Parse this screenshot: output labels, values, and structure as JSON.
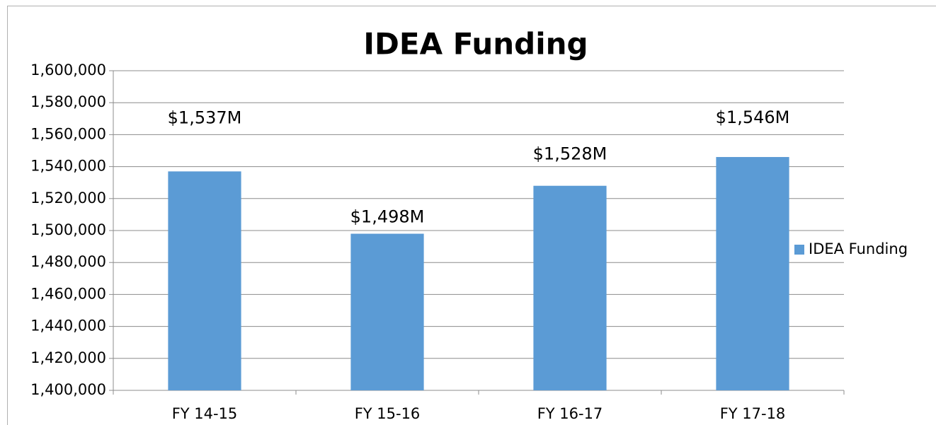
{
  "chart_data": {
    "type": "bar",
    "title": "IDEA Funding",
    "categories": [
      "FY 14-15",
      "FY 15-16",
      "FY 16-17",
      "FY 17-18"
    ],
    "series": [
      {
        "name": "IDEA Funding",
        "color": "#5b9bd5",
        "values": [
          1537000,
          1498000,
          1528000,
          1546000
        ],
        "value_labels": [
          "$1,537M",
          "$1,498M",
          "$1,528M",
          "$1,546M"
        ]
      }
    ],
    "ylim": [
      1400000,
      1600000
    ],
    "yticks": [
      {
        "value": 1400000,
        "label": "1,400,000"
      },
      {
        "value": 1420000,
        "label": "1,420,000"
      },
      {
        "value": 1440000,
        "label": "1,440,000"
      },
      {
        "value": 1460000,
        "label": "1,460,000"
      },
      {
        "value": 1480000,
        "label": "1,480,000"
      },
      {
        "value": 1500000,
        "label": "1,500,000"
      },
      {
        "value": 1520000,
        "label": "1,520,000"
      },
      {
        "value": 1540000,
        "label": "1,540,000"
      },
      {
        "value": 1560000,
        "label": "1,560,000"
      },
      {
        "value": 1580000,
        "label": "1,580,000"
      },
      {
        "value": 1600000,
        "label": "1,600,000"
      }
    ],
    "grid": true,
    "legend": "right"
  }
}
